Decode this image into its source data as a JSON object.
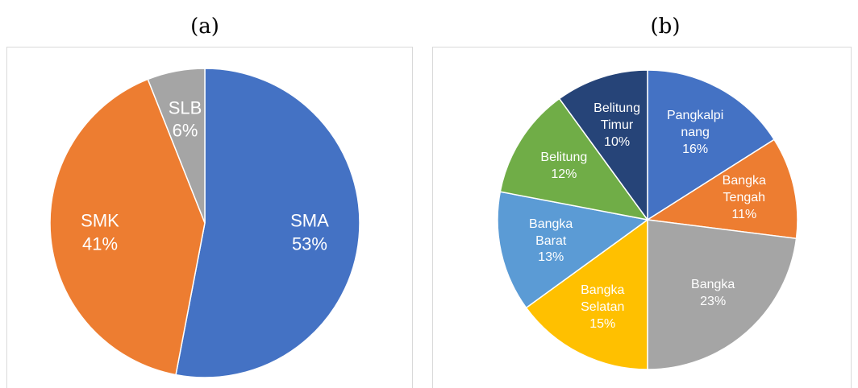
{
  "chart_data": [
    {
      "type": "pie",
      "title": "(a)",
      "categories": [
        "SMA",
        "SMK",
        "SLB"
      ],
      "values": [
        53,
        41,
        6
      ],
      "value_labels": [
        "53%",
        "41%",
        "6%"
      ],
      "colors": [
        "#4472c4",
        "#ed7d31",
        "#a5a5a5"
      ]
    },
    {
      "type": "pie",
      "title": "(b)",
      "categories": [
        "Pangkalpinang",
        "Bangka Tengah",
        "Bangka",
        "Bangka Selatan",
        "Bangka Barat",
        "Belitung",
        "Belitung Timur"
      ],
      "values": [
        16,
        11,
        23,
        15,
        13,
        12,
        10
      ],
      "value_labels": [
        "16%",
        "11%",
        "23%",
        "15%",
        "13%",
        "12%",
        "10%"
      ],
      "colors": [
        "#4472c4",
        "#ed7d31",
        "#a5a5a5",
        "#ffc000",
        "#5b9bd5",
        "#70ad47",
        "#264478"
      ]
    }
  ]
}
